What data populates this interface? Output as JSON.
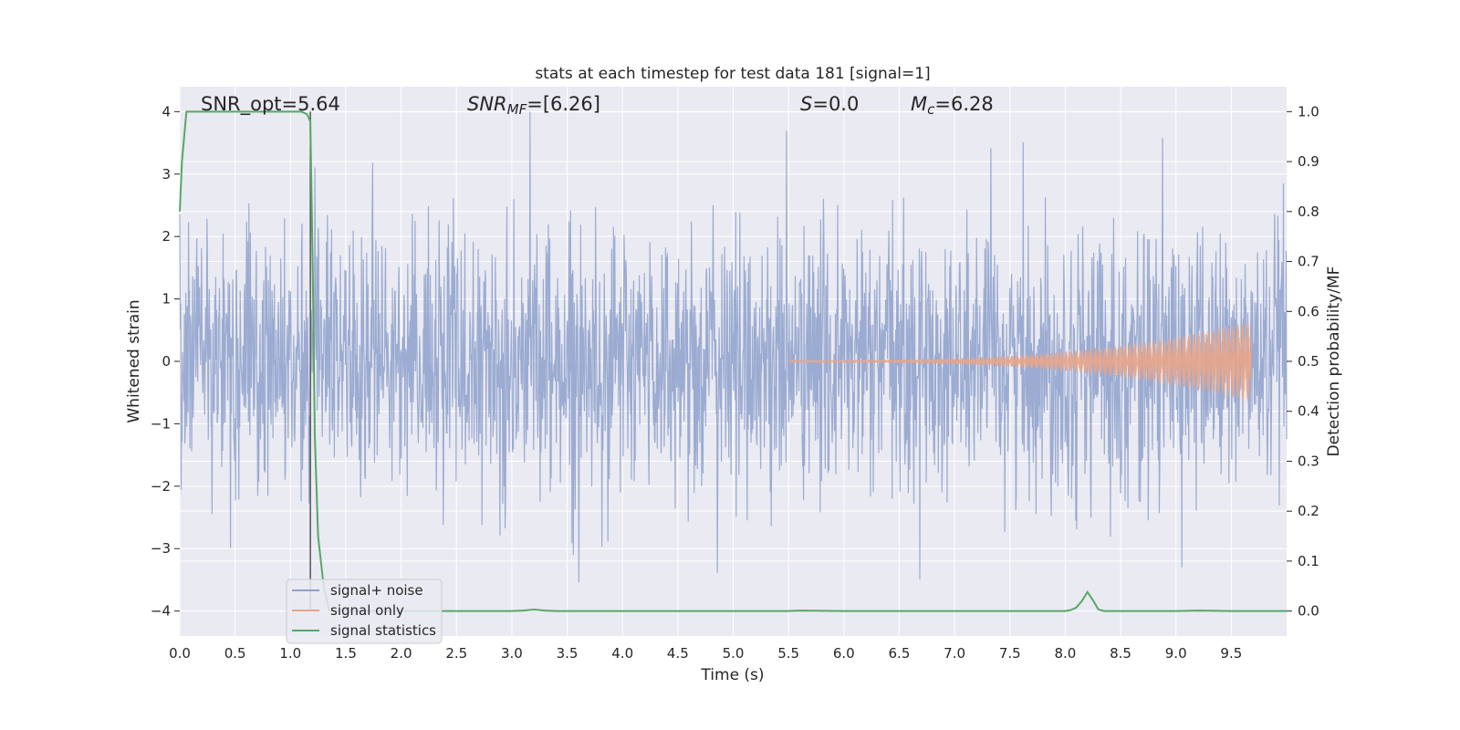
{
  "chart_data": {
    "type": "line",
    "title": "stats at each timestep for test data 181 [signal=1]",
    "xlabel": "Time (s)",
    "ylabel_left": "Whitened strain",
    "ylabel_right": "Detection probability/MF",
    "xlim": [
      0.0,
      10.0
    ],
    "ylim_left": [
      -4.4,
      4.4
    ],
    "ylim_right": [
      -0.05,
      1.05
    ],
    "grid": true,
    "x_ticks": [
      "0.0",
      "0.5",
      "1.0",
      "1.5",
      "2.0",
      "2.5",
      "3.0",
      "3.5",
      "4.0",
      "4.5",
      "5.0",
      "5.5",
      "6.0",
      "6.5",
      "7.0",
      "7.5",
      "8.0",
      "8.5",
      "9.0",
      "9.5"
    ],
    "y_ticks_left": [
      "−4",
      "−3",
      "−2",
      "−1",
      "0",
      "1",
      "2",
      "3",
      "4"
    ],
    "y_ticks_right": [
      "0.0",
      "0.1",
      "0.2",
      "0.3",
      "0.4",
      "0.5",
      "0.6",
      "0.7",
      "0.8",
      "0.9",
      "1.0"
    ],
    "annotations": {
      "snr_opt": "SNR_opt=5.64",
      "snr_mf_main": "SNR",
      "snr_mf_sub": "MF",
      "snr_mf_rest": "=[6.26]",
      "s_main": "S",
      "s_rest": "=0.0",
      "mc_main": "M",
      "mc_sub": "c",
      "mc_rest": "=6.28"
    },
    "legend_position": "lower-left",
    "series": [
      {
        "name": "signal+ noise",
        "axis": "left",
        "color": "#8da0cb",
        "description_values": {
          "typical_abs_max": 3.0,
          "peak_max": 4.0,
          "peak_min": -4.0,
          "x_range": [
            0.0,
            10.0
          ]
        }
      },
      {
        "name": "signal only",
        "axis": "left",
        "color": "#e8a58a",
        "description_values": {
          "start_x": 5.5,
          "end_x": 9.68,
          "amplitude_start": 0.02,
          "amplitude_end": 0.65
        }
      },
      {
        "name": "signal statistics",
        "axis": "right",
        "color": "#55a868",
        "x": [
          0.0,
          0.02,
          0.06,
          0.1,
          0.2,
          0.4,
          0.6,
          0.8,
          1.0,
          1.1,
          1.15,
          1.18,
          1.2,
          1.22,
          1.25,
          1.3,
          1.35,
          1.5,
          2.0,
          2.5,
          3.0,
          3.1,
          3.2,
          3.3,
          3.4,
          4.0,
          5.0,
          5.5,
          5.6,
          6.0,
          7.0,
          8.0,
          8.05,
          8.1,
          8.15,
          8.2,
          8.25,
          8.3,
          8.35,
          8.5,
          9.0,
          9.2,
          9.5,
          10.0
        ],
        "y": [
          0.8,
          0.9,
          1.0,
          1.0,
          1.0,
          1.0,
          1.0,
          1.0,
          1.0,
          1.0,
          0.995,
          0.98,
          0.7,
          0.35,
          0.15,
          0.05,
          0.002,
          0.0,
          0.0,
          0.0,
          0.0,
          0.001,
          0.003,
          0.001,
          0.0,
          0.0,
          0.0,
          0.0,
          0.001,
          0.0,
          0.0,
          0.0,
          0.002,
          0.007,
          0.02,
          0.038,
          0.022,
          0.003,
          0.0,
          0.0,
          0.0,
          0.001,
          0.0,
          0.0
        ]
      }
    ],
    "marker_line": {
      "x": 1.18,
      "color": "#555555"
    }
  },
  "colors": {
    "plot_bg": "#eaeaf2",
    "grid": "#ffffff",
    "noise": "#8da0cb",
    "signal": "#e8a58a",
    "stat": "#55a868"
  }
}
